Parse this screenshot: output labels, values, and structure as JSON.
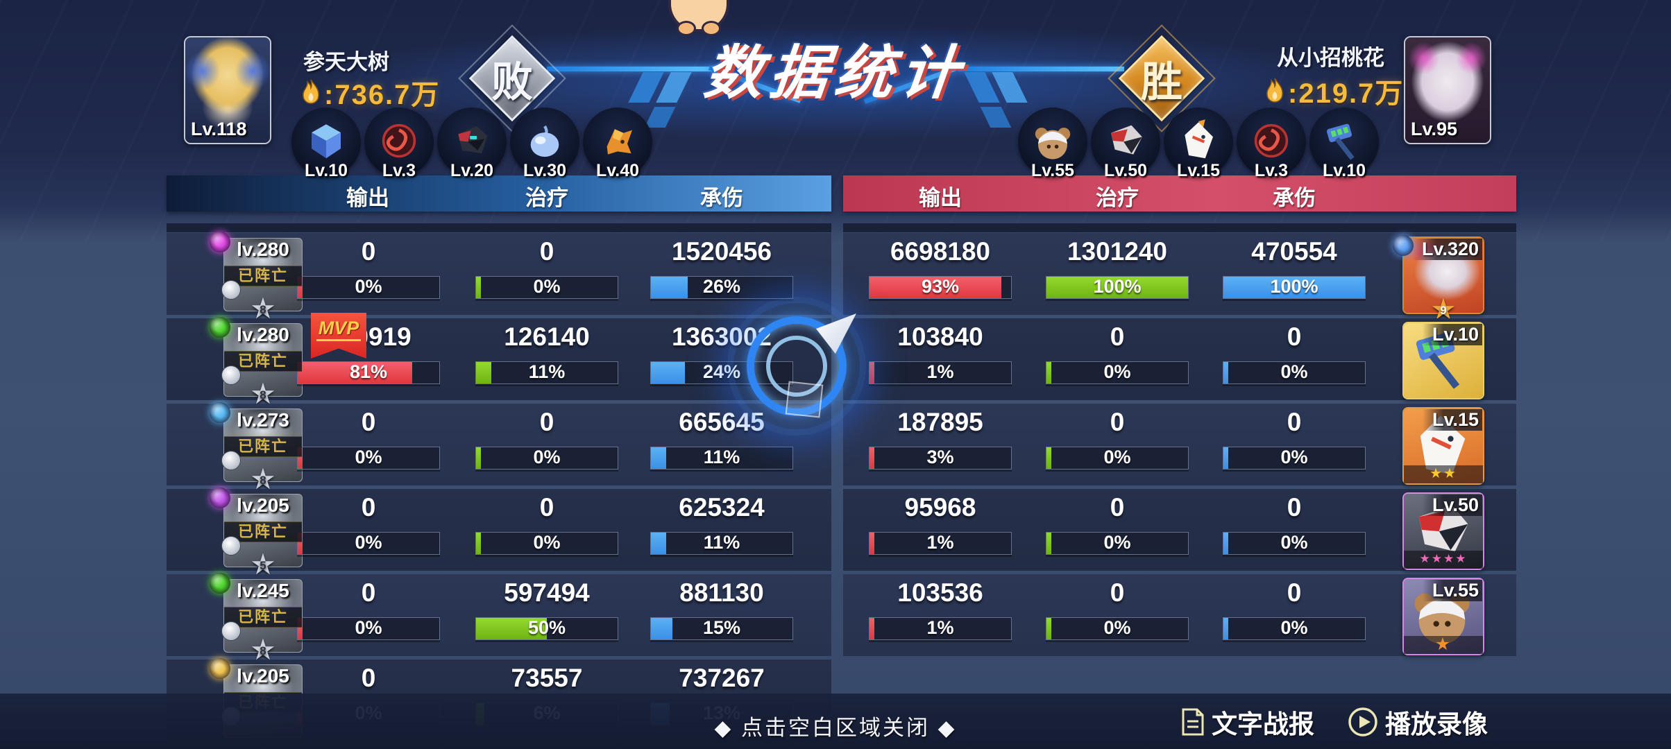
{
  "title": "数据统计",
  "top": {
    "left_player": {
      "name": "参天大树",
      "power": ":736.7万",
      "level": "Lv.118",
      "result": "败"
    },
    "right_player": {
      "name": "从小招桃花",
      "power": ":219.7万",
      "level": "Lv.95",
      "result": "胜"
    },
    "left_pets": [
      {
        "level": "Lv.10"
      },
      {
        "level": "Lv.3"
      },
      {
        "level": "Lv.20"
      },
      {
        "level": "Lv.30"
      },
      {
        "level": "Lv.40"
      }
    ],
    "right_pets": [
      {
        "level": "Lv.55"
      },
      {
        "level": "Lv.50"
      },
      {
        "level": "Lv.15"
      },
      {
        "level": "Lv.3"
      },
      {
        "level": "Lv.10"
      }
    ]
  },
  "tables": {
    "headers": [
      "输出",
      "治疗",
      "承伤"
    ],
    "dead_label": "已阵亡",
    "mvp_label": "MVP",
    "left_rows": [
      {
        "level": "lv.280",
        "star": "8",
        "class_color": "#e14ae6",
        "cols": [
          {
            "value": "0",
            "pct": "0%",
            "fill": 0
          },
          {
            "value": "0",
            "pct": "0%",
            "fill": 0
          },
          {
            "value": "1520456",
            "pct": "26%",
            "fill": 26
          }
        ]
      },
      {
        "level": "lv.280",
        "star": "8",
        "class_color": "#4ad42a",
        "cols": [
          {
            "value": "380919",
            "pct": "81%",
            "fill": 81
          },
          {
            "value": "126140",
            "pct": "11%",
            "fill": 11
          },
          {
            "value": "1363002",
            "pct": "24%",
            "fill": 24
          }
        ]
      },
      {
        "level": "lv.273",
        "star": "8",
        "class_color": "#56b8f2",
        "cols": [
          {
            "value": "0",
            "pct": "0%",
            "fill": 0
          },
          {
            "value": "0",
            "pct": "0%",
            "fill": 0
          },
          {
            "value": "665645",
            "pct": "11%",
            "fill": 11
          }
        ]
      },
      {
        "level": "lv.205",
        "star": "5",
        "class_color": "#bf53e8",
        "cols": [
          {
            "value": "0",
            "pct": "0%",
            "fill": 0
          },
          {
            "value": "0",
            "pct": "0%",
            "fill": 0
          },
          {
            "value": "625324",
            "pct": "11%",
            "fill": 11
          }
        ]
      },
      {
        "level": "lv.245",
        "star": "8",
        "class_color": "#4ad42a",
        "cols": [
          {
            "value": "0",
            "pct": "0%",
            "fill": 0
          },
          {
            "value": "597494",
            "pct": "50%",
            "fill": 50
          },
          {
            "value": "881130",
            "pct": "15%",
            "fill": 15
          }
        ]
      },
      {
        "level": "lv.205",
        "star": "",
        "class_color": "#edc34e",
        "cols": [
          {
            "value": "0",
            "pct": "0%",
            "fill": 0
          },
          {
            "value": "73557",
            "pct": "6%",
            "fill": 6
          },
          {
            "value": "737267",
            "pct": "13%",
            "fill": 13
          }
        ]
      }
    ],
    "right_rows": [
      {
        "level": "Lv.320",
        "star": "9",
        "class_color": "#5b9cf2",
        "stars": "",
        "cols": [
          {
            "value": "6698180",
            "pct": "93%",
            "fill": 93
          },
          {
            "value": "1301240",
            "pct": "100%",
            "fill": 100
          },
          {
            "value": "470554",
            "pct": "100%",
            "fill": 100
          }
        ]
      },
      {
        "level": "Lv.10",
        "stars": "",
        "cols": [
          {
            "value": "103840",
            "pct": "1%",
            "fill": 1
          },
          {
            "value": "0",
            "pct": "0%",
            "fill": 0
          },
          {
            "value": "0",
            "pct": "0%",
            "fill": 0
          }
        ]
      },
      {
        "level": "Lv.15",
        "stars": "★★",
        "cols": [
          {
            "value": "187895",
            "pct": "3%",
            "fill": 3
          },
          {
            "value": "0",
            "pct": "0%",
            "fill": 0
          },
          {
            "value": "0",
            "pct": "0%",
            "fill": 0
          }
        ]
      },
      {
        "level": "Lv.50",
        "stars": "★★★★",
        "cols": [
          {
            "value": "95968",
            "pct": "1%",
            "fill": 1
          },
          {
            "value": "0",
            "pct": "0%",
            "fill": 0
          },
          {
            "value": "0",
            "pct": "0%",
            "fill": 0
          }
        ]
      },
      {
        "level": "Lv.55",
        "stars": "★",
        "cols": [
          {
            "value": "103536",
            "pct": "1%",
            "fill": 1
          },
          {
            "value": "0",
            "pct": "0%",
            "fill": 0
          },
          {
            "value": "0",
            "pct": "0%",
            "fill": 0
          }
        ]
      }
    ]
  },
  "footer": {
    "close_hint": "◆ 点击空白区域关闭 ◆",
    "text_report": "文字战报",
    "play_record": "播放录像"
  },
  "colors": {
    "damage": "#e8454e",
    "heal": "#7ec41c",
    "taken": "#459ff0",
    "header_left": "#3f85cf",
    "header_right": "#cc4762",
    "power": "#f6bb3d"
  }
}
